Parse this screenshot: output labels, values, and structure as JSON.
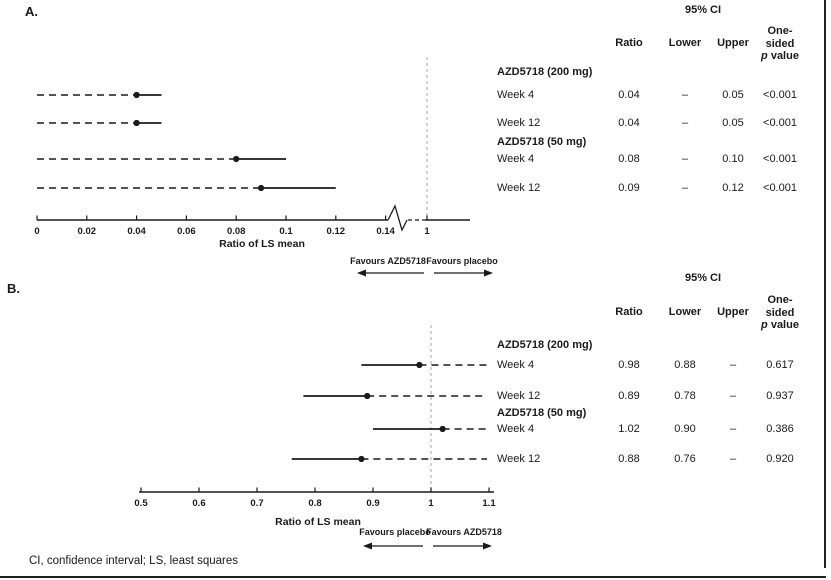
{
  "figure": {
    "panel_a_label": "A.",
    "panel_b_label": "B.",
    "footnote": "CI, confidence interval; LS, least squares"
  },
  "table_headers": {
    "ci": "95% CI",
    "ratio": "Ratio",
    "lower": "Lower",
    "upper": "Upper",
    "one_sided_l1": "One-",
    "one_sided_l2": "sided",
    "p_italic": "p",
    "p_rest": " value"
  },
  "panel_a": {
    "groups": [
      {
        "name": "AZD5718 (200 mg)",
        "rows": [
          {
            "label": "Week 4",
            "ratio": "0.04",
            "lower": "–",
            "upper": "0.05",
            "p": "<0.001"
          },
          {
            "label": "Week 12",
            "ratio": "0.04",
            "lower": "–",
            "upper": "0.05",
            "p": "<0.001"
          }
        ]
      },
      {
        "name": "AZD5718 (50 mg)",
        "rows": [
          {
            "label": "Week 4",
            "ratio": "0.08",
            "lower": "–",
            "upper": "0.10",
            "p": "<0.001"
          },
          {
            "label": "Week 12",
            "ratio": "0.09",
            "lower": "–",
            "upper": "0.12",
            "p": "<0.001"
          }
        ]
      }
    ]
  },
  "panel_b": {
    "groups": [
      {
        "name": "AZD5718 (200 mg)",
        "rows": [
          {
            "label": "Week 4",
            "ratio": "0.98",
            "lower": "0.88",
            "upper": "–",
            "p": "0.617"
          },
          {
            "label": "Week 12",
            "ratio": "0.89",
            "lower": "0.78",
            "upper": "–",
            "p": "0.937"
          }
        ]
      },
      {
        "name": "AZD5718 (50 mg)",
        "rows": [
          {
            "label": "Week 4",
            "ratio": "1.02",
            "lower": "0.90",
            "upper": "–",
            "p": "0.386"
          },
          {
            "label": "Week 12",
            "ratio": "0.88",
            "lower": "0.76",
            "upper": "–",
            "p": "0.920"
          }
        ]
      }
    ]
  },
  "chart_data": [
    {
      "type": "forest",
      "panel": "A",
      "xlabel": "Ratio of LS mean",
      "favours_left": "Favours AZD5718",
      "favours_right": "Favours placebo",
      "x_ticks": [
        "0",
        "0.02",
        "0.04",
        "0.06",
        "0.08",
        "0.1",
        "0.12",
        "0.14"
      ],
      "xlim": [
        0,
        0.15
      ],
      "axis_break": {
        "after": 0.14,
        "resumes_at": 1
      },
      "reference_value": 1,
      "reference_tick_label": "1",
      "ci_style": {
        "dashed_side": "lower",
        "solid_side": "upper"
      },
      "points": [
        {
          "group": "AZD5718 (200 mg)",
          "label": "Week 4",
          "estimate": 0.04,
          "lower": null,
          "upper": 0.05
        },
        {
          "group": "AZD5718 (200 mg)",
          "label": "Week 12",
          "estimate": 0.04,
          "lower": null,
          "upper": 0.05
        },
        {
          "group": "AZD5718 (50 mg)",
          "label": "Week 4",
          "estimate": 0.08,
          "lower": null,
          "upper": 0.1
        },
        {
          "group": "AZD5718 (50 mg)",
          "label": "Week 12",
          "estimate": 0.09,
          "lower": null,
          "upper": 0.12
        }
      ]
    },
    {
      "type": "forest",
      "panel": "B",
      "xlabel": "Ratio of LS mean",
      "favours_left": "Favours placebo",
      "favours_right": "Favours AZD5718",
      "x_ticks": [
        "0.5",
        "0.6",
        "0.7",
        "0.8",
        "0.9",
        "1",
        "1.1"
      ],
      "xlim": [
        0.5,
        1.1
      ],
      "reference_value": 1,
      "ci_style": {
        "dashed_side": "upper",
        "solid_side": "lower"
      },
      "points": [
        {
          "group": "AZD5718 (200 mg)",
          "label": "Week 4",
          "estimate": 0.98,
          "lower": 0.88,
          "upper": null
        },
        {
          "group": "AZD5718 (200 mg)",
          "label": "Week 12",
          "estimate": 0.89,
          "lower": 0.78,
          "upper": null
        },
        {
          "group": "AZD5718 (50 mg)",
          "label": "Week 4",
          "estimate": 1.02,
          "lower": 0.9,
          "upper": null
        },
        {
          "group": "AZD5718 (50 mg)",
          "label": "Week 12",
          "estimate": 0.88,
          "lower": 0.76,
          "upper": null
        }
      ]
    }
  ]
}
